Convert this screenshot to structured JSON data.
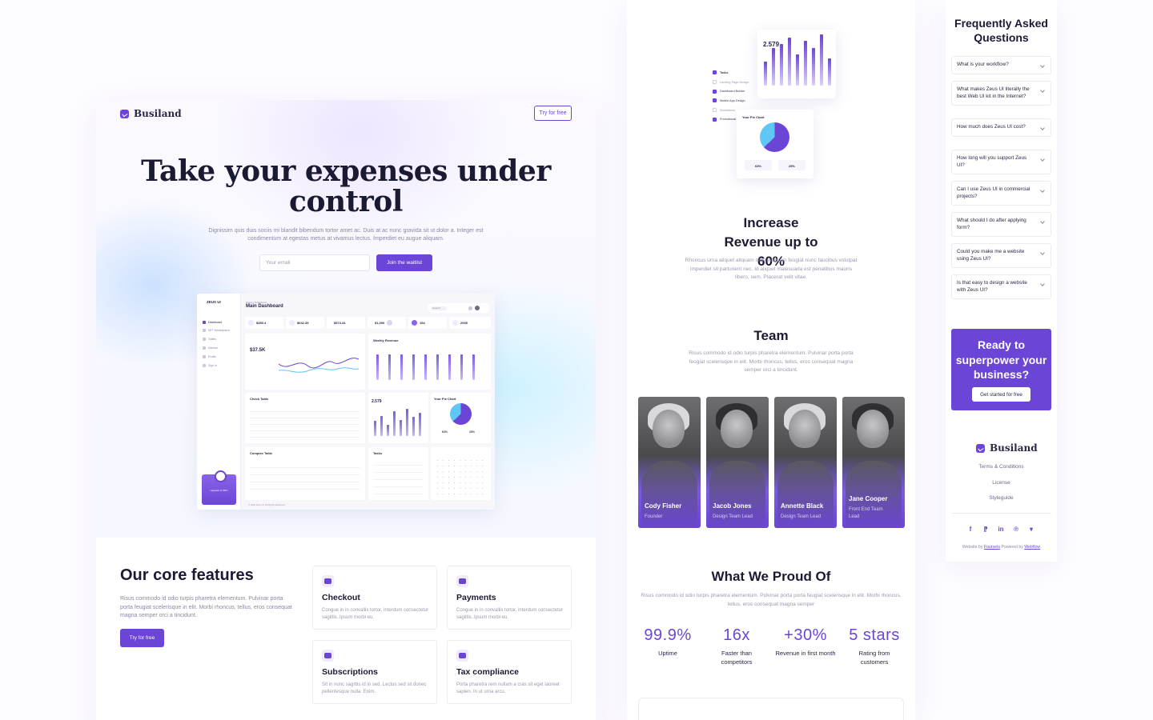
{
  "brand": "Busiland",
  "hero": {
    "try_label": "Try for free",
    "title": "Take your expenses under control",
    "desc": "Dignissim quis duis sociis mi blandit bibendum tortor amet ac. Duis at ac nunc gravida sit ut dolor a. Integer est condimentum at egestas metus at vivamus lectus. Imperdiet eu augue aliquam.",
    "email_placeholder": "Your email",
    "join_label": "Join the waitlist"
  },
  "dashboard": {
    "brand": "ZEUS UI",
    "breadcrumb": "Pages / Dashboard",
    "title": "Main Dashboard",
    "search_placeholder": "Search",
    "nav": [
      "Dashboard",
      "NFT Marketplace",
      "Tables",
      "Kanban",
      "Profile",
      "Sign In"
    ],
    "stats": [
      "$350.4",
      "$642.39",
      "$574.34",
      "$1,000",
      "154",
      "2935"
    ],
    "line_value": "$37.5K",
    "weekly_revenue": "Weekly Revenue",
    "check_table": "Check Table",
    "daily_value": "2.579",
    "pie_title": "Your Pie Chart",
    "pie_values": [
      "63%",
      "25%"
    ],
    "complex_table": "Complex Table",
    "tasks_title": "Tasks",
    "upgrade": "Upgrade to PRO",
    "copyright": "© 2022 Zeus UI. All Rights Reserved."
  },
  "features": {
    "title": "Our core features",
    "desc": "Risus commodo id odio turpis pharetra elementum. Pulvinar porta porta feugiat scelerisque in elit. Morbi rhoncus, tellus, eros consequat magna semper orci a tincidunt.",
    "button": "Try for free",
    "items": [
      {
        "title": "Checkout",
        "desc": "Congue in in convallis tortor, interdum consectetur sagittis. Ipsum morbi eu.",
        "icon": "cart-icon"
      },
      {
        "title": "Payments",
        "desc": "Congue in in convallis tortor, interdum consectetur sagittis. Ipsum morbi eu.",
        "icon": "wallet-icon"
      },
      {
        "title": "Subscriptions",
        "desc": "Sit in nunc sagittis id in sed. Lectus sed sit donec pellentesque nulla. Enim.",
        "icon": "trend-icon"
      },
      {
        "title": "Tax compliance",
        "desc": "Porta pharetra rem nullam a cras sit eget laoreet sapien. In ut urna arcu.",
        "icon": "percent-icon"
      }
    ]
  },
  "mini": {
    "daily_value": "2.579",
    "tasks": [
      "Tasks",
      "Landing Page Design",
      "Dashboard Builder",
      "Mobile App Design",
      "Illustrations",
      "Promotional LP"
    ],
    "pie_title": "Your Pie Chart",
    "pie_values": [
      "63%",
      "25%"
    ]
  },
  "revenue": {
    "title": "Increase Revenue up to 60%",
    "desc": "Rhoncus urna aliquet aliquam nibh. Aliquam feugiat nunc faucibus volutpat imperdiet sit parturient nec. Id aliquet malesuada est penatibus mauris libero, sem. Placerat velit vitae."
  },
  "team": {
    "title": "Team",
    "desc": "Risus commodo id odio turpis pharetra elementum. Pulvinar porta porta feugiat scelerisque in elit. Morbi rhoncus, tellus, eros consequat magna semper orci a tincidunt.",
    "members": [
      {
        "name": "Cody Fisher",
        "role": "Founder"
      },
      {
        "name": "Jacob Jones",
        "role": "Design Team Lead"
      },
      {
        "name": "Annette Black",
        "role": "Design Team Lead"
      },
      {
        "name": "Jane Cooper",
        "role": "Front End Team Lead"
      }
    ]
  },
  "proud": {
    "title": "What We Proud Of",
    "desc": "Risus commodo id odio turpis pharetra elementum. Pulvinar porta porta feugiat scelerisque in elit. Morbi rhoncus, tellus, eros consequat magna semper",
    "stats": [
      {
        "value": "99.9%",
        "label": "Uptime"
      },
      {
        "value": "16x",
        "label": "Faster than competitors"
      },
      {
        "value": "+30%",
        "label": "Revenue in first month"
      },
      {
        "value": "5 stars",
        "label": "Rating from customers"
      }
    ]
  },
  "faq": {
    "title": "Frequently Asked Questions",
    "items": [
      "What is your workflow?",
      "What makes Zeus UI literally the best Web UI kit in the Internet?",
      "How much does Zeus UI cost?",
      "How long will you support Zeus UI?",
      "Can I use Zeus UI in commercial projects?",
      "What should I do after applying form?",
      "Could you make me a website using Zeus UI?",
      "Is that easy to design a website with Zeus UI?"
    ]
  },
  "cta": {
    "title": "Ready to superpower your business?",
    "button": "Get started for free"
  },
  "footer": {
    "brand": "Busiland",
    "links": [
      "Terms & Conditions",
      "License",
      "Styleguide"
    ],
    "social_icons": [
      "facebook-icon",
      "framer-icon",
      "linkedin-icon",
      "pinterest-icon",
      "twitter-icon"
    ],
    "credit_prefix": "Website by",
    "credit_author": "Foursets",
    "credit_mid": "Powered by",
    "credit_platform": "Webflow"
  },
  "colors": {
    "accent": "#6b45d6",
    "accent_light": "#efeafc",
    "cyan": "#5fc7f5",
    "text": "#1b1a33",
    "muted": "#8a89a3"
  }
}
